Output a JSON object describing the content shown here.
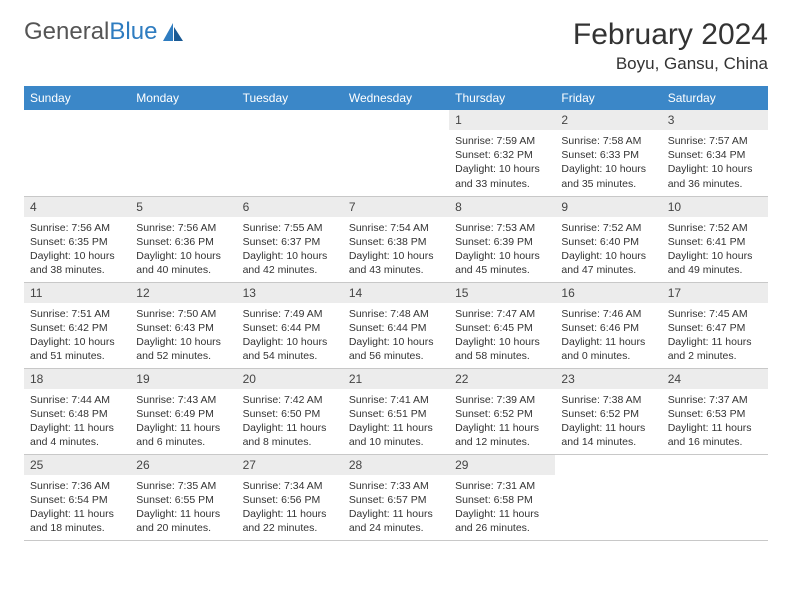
{
  "logo": {
    "text1": "General",
    "text2": "Blue"
  },
  "title": "February 2024",
  "location": "Boyu, Gansu, China",
  "colors": {
    "header_bg": "#3b87c8",
    "header_fg": "#ffffff",
    "daynum_bg": "#ececec",
    "border": "#c8c8c8",
    "logo_blue": "#2e7cc0"
  },
  "weekdays": [
    "Sunday",
    "Monday",
    "Tuesday",
    "Wednesday",
    "Thursday",
    "Friday",
    "Saturday"
  ],
  "weeks": [
    [
      null,
      null,
      null,
      null,
      {
        "n": "1",
        "sr": "Sunrise: 7:59 AM",
        "ss": "Sunset: 6:32 PM",
        "dl": "Daylight: 10 hours and 33 minutes."
      },
      {
        "n": "2",
        "sr": "Sunrise: 7:58 AM",
        "ss": "Sunset: 6:33 PM",
        "dl": "Daylight: 10 hours and 35 minutes."
      },
      {
        "n": "3",
        "sr": "Sunrise: 7:57 AM",
        "ss": "Sunset: 6:34 PM",
        "dl": "Daylight: 10 hours and 36 minutes."
      }
    ],
    [
      {
        "n": "4",
        "sr": "Sunrise: 7:56 AM",
        "ss": "Sunset: 6:35 PM",
        "dl": "Daylight: 10 hours and 38 minutes."
      },
      {
        "n": "5",
        "sr": "Sunrise: 7:56 AM",
        "ss": "Sunset: 6:36 PM",
        "dl": "Daylight: 10 hours and 40 minutes."
      },
      {
        "n": "6",
        "sr": "Sunrise: 7:55 AM",
        "ss": "Sunset: 6:37 PM",
        "dl": "Daylight: 10 hours and 42 minutes."
      },
      {
        "n": "7",
        "sr": "Sunrise: 7:54 AM",
        "ss": "Sunset: 6:38 PM",
        "dl": "Daylight: 10 hours and 43 minutes."
      },
      {
        "n": "8",
        "sr": "Sunrise: 7:53 AM",
        "ss": "Sunset: 6:39 PM",
        "dl": "Daylight: 10 hours and 45 minutes."
      },
      {
        "n": "9",
        "sr": "Sunrise: 7:52 AM",
        "ss": "Sunset: 6:40 PM",
        "dl": "Daylight: 10 hours and 47 minutes."
      },
      {
        "n": "10",
        "sr": "Sunrise: 7:52 AM",
        "ss": "Sunset: 6:41 PM",
        "dl": "Daylight: 10 hours and 49 minutes."
      }
    ],
    [
      {
        "n": "11",
        "sr": "Sunrise: 7:51 AM",
        "ss": "Sunset: 6:42 PM",
        "dl": "Daylight: 10 hours and 51 minutes."
      },
      {
        "n": "12",
        "sr": "Sunrise: 7:50 AM",
        "ss": "Sunset: 6:43 PM",
        "dl": "Daylight: 10 hours and 52 minutes."
      },
      {
        "n": "13",
        "sr": "Sunrise: 7:49 AM",
        "ss": "Sunset: 6:44 PM",
        "dl": "Daylight: 10 hours and 54 minutes."
      },
      {
        "n": "14",
        "sr": "Sunrise: 7:48 AM",
        "ss": "Sunset: 6:44 PM",
        "dl": "Daylight: 10 hours and 56 minutes."
      },
      {
        "n": "15",
        "sr": "Sunrise: 7:47 AM",
        "ss": "Sunset: 6:45 PM",
        "dl": "Daylight: 10 hours and 58 minutes."
      },
      {
        "n": "16",
        "sr": "Sunrise: 7:46 AM",
        "ss": "Sunset: 6:46 PM",
        "dl": "Daylight: 11 hours and 0 minutes."
      },
      {
        "n": "17",
        "sr": "Sunrise: 7:45 AM",
        "ss": "Sunset: 6:47 PM",
        "dl": "Daylight: 11 hours and 2 minutes."
      }
    ],
    [
      {
        "n": "18",
        "sr": "Sunrise: 7:44 AM",
        "ss": "Sunset: 6:48 PM",
        "dl": "Daylight: 11 hours and 4 minutes."
      },
      {
        "n": "19",
        "sr": "Sunrise: 7:43 AM",
        "ss": "Sunset: 6:49 PM",
        "dl": "Daylight: 11 hours and 6 minutes."
      },
      {
        "n": "20",
        "sr": "Sunrise: 7:42 AM",
        "ss": "Sunset: 6:50 PM",
        "dl": "Daylight: 11 hours and 8 minutes."
      },
      {
        "n": "21",
        "sr": "Sunrise: 7:41 AM",
        "ss": "Sunset: 6:51 PM",
        "dl": "Daylight: 11 hours and 10 minutes."
      },
      {
        "n": "22",
        "sr": "Sunrise: 7:39 AM",
        "ss": "Sunset: 6:52 PM",
        "dl": "Daylight: 11 hours and 12 minutes."
      },
      {
        "n": "23",
        "sr": "Sunrise: 7:38 AM",
        "ss": "Sunset: 6:52 PM",
        "dl": "Daylight: 11 hours and 14 minutes."
      },
      {
        "n": "24",
        "sr": "Sunrise: 7:37 AM",
        "ss": "Sunset: 6:53 PM",
        "dl": "Daylight: 11 hours and 16 minutes."
      }
    ],
    [
      {
        "n": "25",
        "sr": "Sunrise: 7:36 AM",
        "ss": "Sunset: 6:54 PM",
        "dl": "Daylight: 11 hours and 18 minutes."
      },
      {
        "n": "26",
        "sr": "Sunrise: 7:35 AM",
        "ss": "Sunset: 6:55 PM",
        "dl": "Daylight: 11 hours and 20 minutes."
      },
      {
        "n": "27",
        "sr": "Sunrise: 7:34 AM",
        "ss": "Sunset: 6:56 PM",
        "dl": "Daylight: 11 hours and 22 minutes."
      },
      {
        "n": "28",
        "sr": "Sunrise: 7:33 AM",
        "ss": "Sunset: 6:57 PM",
        "dl": "Daylight: 11 hours and 24 minutes."
      },
      {
        "n": "29",
        "sr": "Sunrise: 7:31 AM",
        "ss": "Sunset: 6:58 PM",
        "dl": "Daylight: 11 hours and 26 minutes."
      },
      null,
      null
    ]
  ]
}
